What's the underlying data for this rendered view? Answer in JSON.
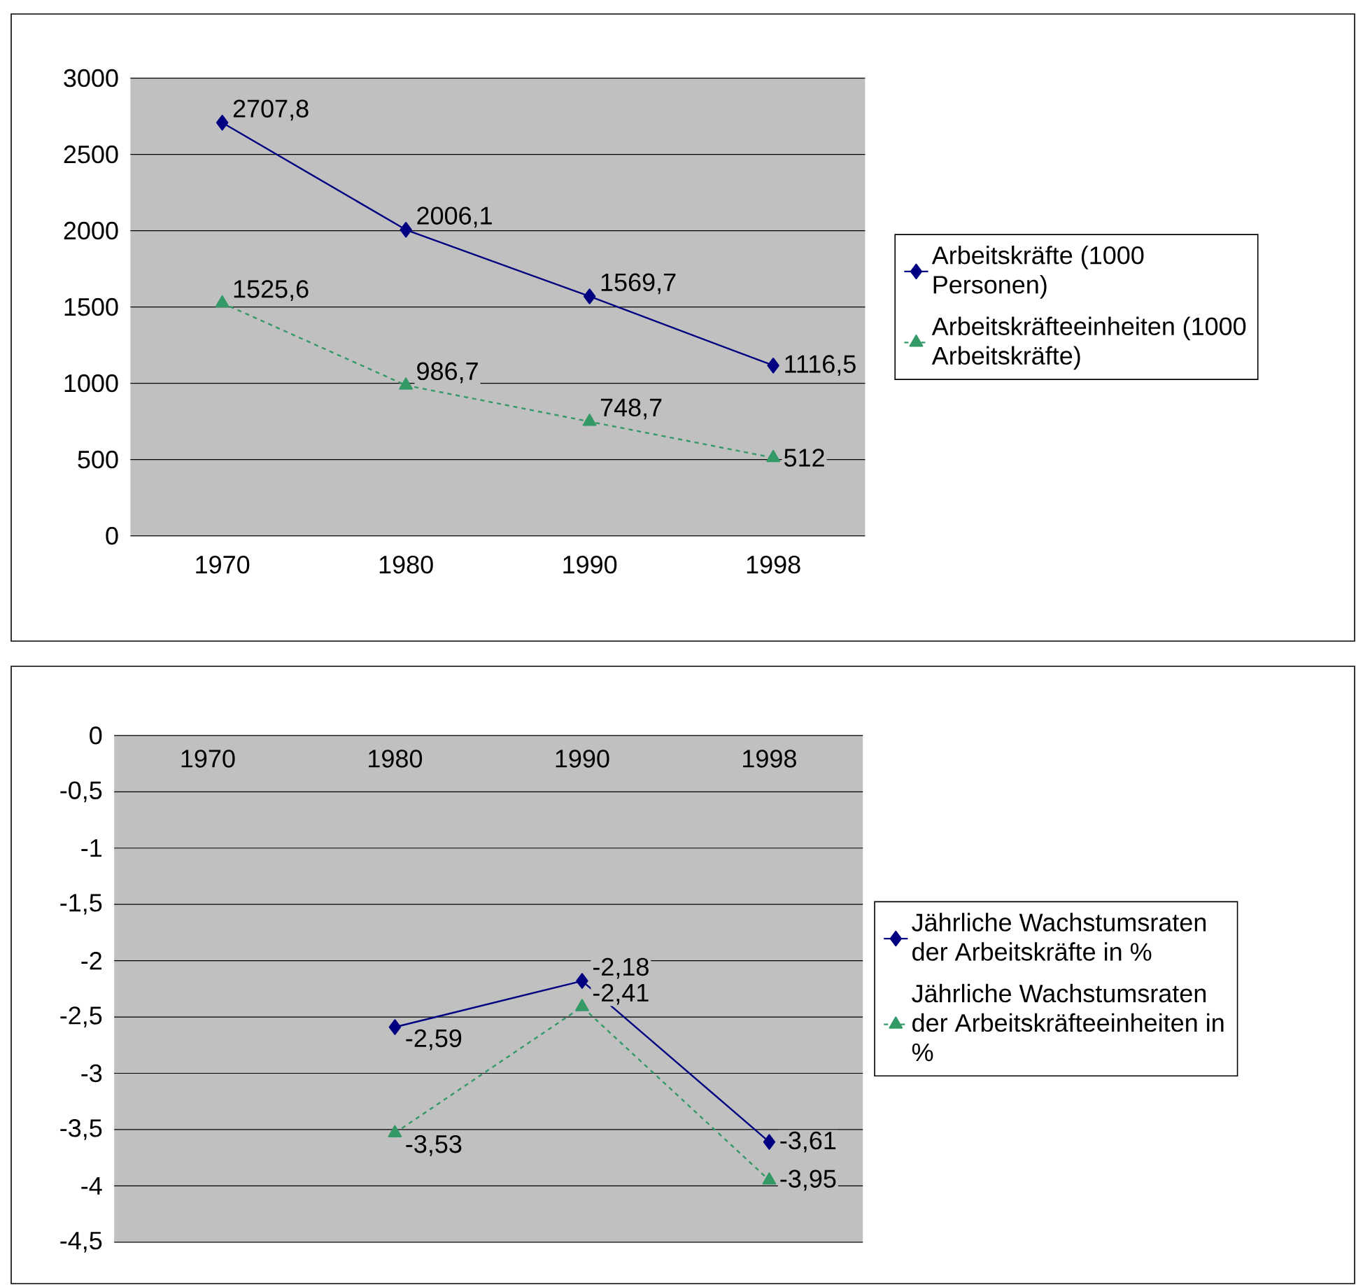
{
  "chart_data": [
    {
      "type": "line",
      "categories": [
        "1970",
        "1980",
        "1990",
        "1998"
      ],
      "ylim": [
        0,
        3000
      ],
      "yticks": [
        0,
        500,
        1000,
        1500,
        2000,
        2500,
        3000
      ],
      "grid": "y",
      "legend": "right",
      "series": [
        {
          "name": "Arbeitskräfte (1000 Personen)",
          "color": "#000080",
          "marker": "diamond",
          "line_style": "solid",
          "values": [
            2707.8,
            2006.1,
            1569.7,
            1116.5
          ],
          "value_labels": [
            "2707,8",
            "2006,1",
            "1569,7",
            "1116,5"
          ]
        },
        {
          "name": "Arbeitskräfteeinheiten (1000 Arbeitskräfte)",
          "color": "#339966",
          "marker": "triangle",
          "line_style": "dashed",
          "values": [
            1525.6,
            986.7,
            748.7,
            512
          ],
          "value_labels": [
            "1525,6",
            "986,7",
            "748,7",
            "512"
          ]
        }
      ]
    },
    {
      "type": "line",
      "categories": [
        "1970",
        "1980",
        "1990",
        "1998"
      ],
      "ylim": [
        -4.5,
        0
      ],
      "yticks": [
        0,
        {
          "value": -0.5,
          "label": "-0,5"
        },
        -1,
        {
          "value": -1.5,
          "label": "-1,5"
        },
        -2,
        {
          "value": -2.5,
          "label": "-2,5"
        },
        -3,
        {
          "value": -3.5,
          "label": "-3,5"
        },
        -4,
        {
          "value": -4.5,
          "label": "-4,5"
        }
      ],
      "grid": "y",
      "legend": "right",
      "series": [
        {
          "name": "Jährliche Wachstumsraten der Arbeitskräfte in %",
          "color": "#000080",
          "marker": "diamond",
          "line_style": "solid",
          "values": [
            null,
            -2.59,
            -2.18,
            -3.61
          ],
          "value_labels": [
            null,
            "-2,59",
            "-2,18",
            "-3,61"
          ]
        },
        {
          "name": "Jährliche Wachstumsraten der Arbeitskräfteeinheiten in %",
          "color": "#339966",
          "marker": "triangle",
          "line_style": "dashed",
          "values": [
            null,
            -3.53,
            -2.41,
            -3.95
          ],
          "value_labels": [
            null,
            "-3,53",
            "-2,41",
            "-3,95"
          ]
        }
      ]
    }
  ]
}
